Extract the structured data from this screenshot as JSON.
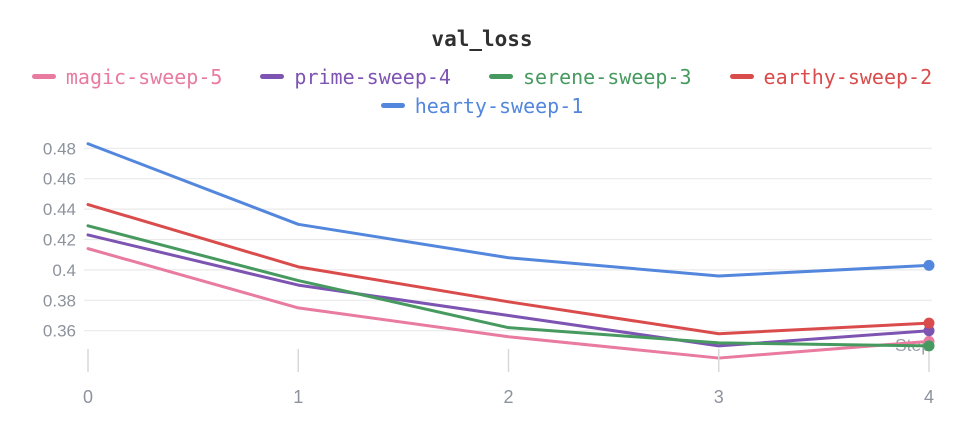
{
  "chart": {
    "title": "val_loss"
  },
  "colors": {
    "axis_text": "#8D939C",
    "grid_line": "#EAEAEA",
    "tick_mark": "#D8D8D8",
    "title_text": "#303030",
    "step_label": "#9BA1A9",
    "background": "#FFFFFF"
  },
  "chart_data": {
    "type": "line",
    "title": "val_loss",
    "xlabel": "Step",
    "x": [
      0,
      1,
      2,
      3,
      4
    ],
    "x_tick_labels": [
      "0",
      "1",
      "2",
      "3",
      "4"
    ],
    "y_ticks": [
      0.48,
      0.46,
      0.44,
      0.42,
      0.4,
      0.38,
      0.36
    ],
    "y_tick_labels": [
      "0.48",
      "0.46",
      "0.44",
      "0.42",
      "0.4",
      "0.38",
      "0.36"
    ],
    "ylim": [
      0.336,
      0.488
    ],
    "grid": "horizontal",
    "legend_position": "top",
    "series": [
      {
        "name": "magic-sweep-5",
        "color": "#E87B9F",
        "values": [
          0.414,
          0.375,
          0.356,
          0.342,
          0.353
        ]
      },
      {
        "name": "prime-sweep-4",
        "color": "#7D54B2",
        "values": [
          0.423,
          0.39,
          0.37,
          0.35,
          0.36
        ]
      },
      {
        "name": "serene-sweep-3",
        "color": "#479A5F",
        "values": [
          0.429,
          0.393,
          0.362,
          0.352,
          0.35
        ]
      },
      {
        "name": "earthy-sweep-2",
        "color": "#DA4C4C",
        "values": [
          0.443,
          0.402,
          0.379,
          0.358,
          0.365
        ]
      },
      {
        "name": "hearty-sweep-1",
        "color": "#5387DD",
        "values": [
          0.483,
          0.43,
          0.408,
          0.396,
          0.403
        ]
      }
    ]
  }
}
